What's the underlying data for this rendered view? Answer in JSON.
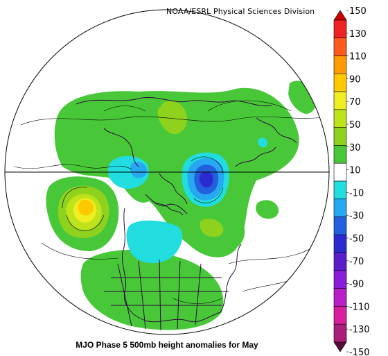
{
  "credit": "NOAA/ESRL Physical Sciences Division",
  "caption": "MJO Phase 5 500mb height anomalies for May",
  "colorbar": {
    "ticks": [
      "150",
      "130",
      "110",
      "90",
      "70",
      "50",
      "30",
      "10",
      "-10",
      "-30",
      "-50",
      "-70",
      "-90",
      "-110",
      "-130",
      "-150"
    ],
    "colors": [
      "#cc0000",
      "#ee2222",
      "#ff5a1e",
      "#ff9a00",
      "#ffc900",
      "#eeee22",
      "#bde31b",
      "#8fd21e",
      "#48c838",
      "#ffffff",
      "#22dde0",
      "#28a8f0",
      "#2260dd",
      "#2a2ad0",
      "#5a1ec8",
      "#8a1ed8",
      "#b81ec8",
      "#d81e9e",
      "#a81e78",
      "#5a0a3a"
    ]
  },
  "anomaly_centers": [
    {
      "sign": "positive",
      "peak": 70
    },
    {
      "sign": "negative",
      "peak": -70
    },
    {
      "sign": "negative",
      "peak": -30
    },
    {
      "sign": "negative",
      "peak": -30
    },
    {
      "sign": "positive",
      "peak": 30
    }
  ]
}
